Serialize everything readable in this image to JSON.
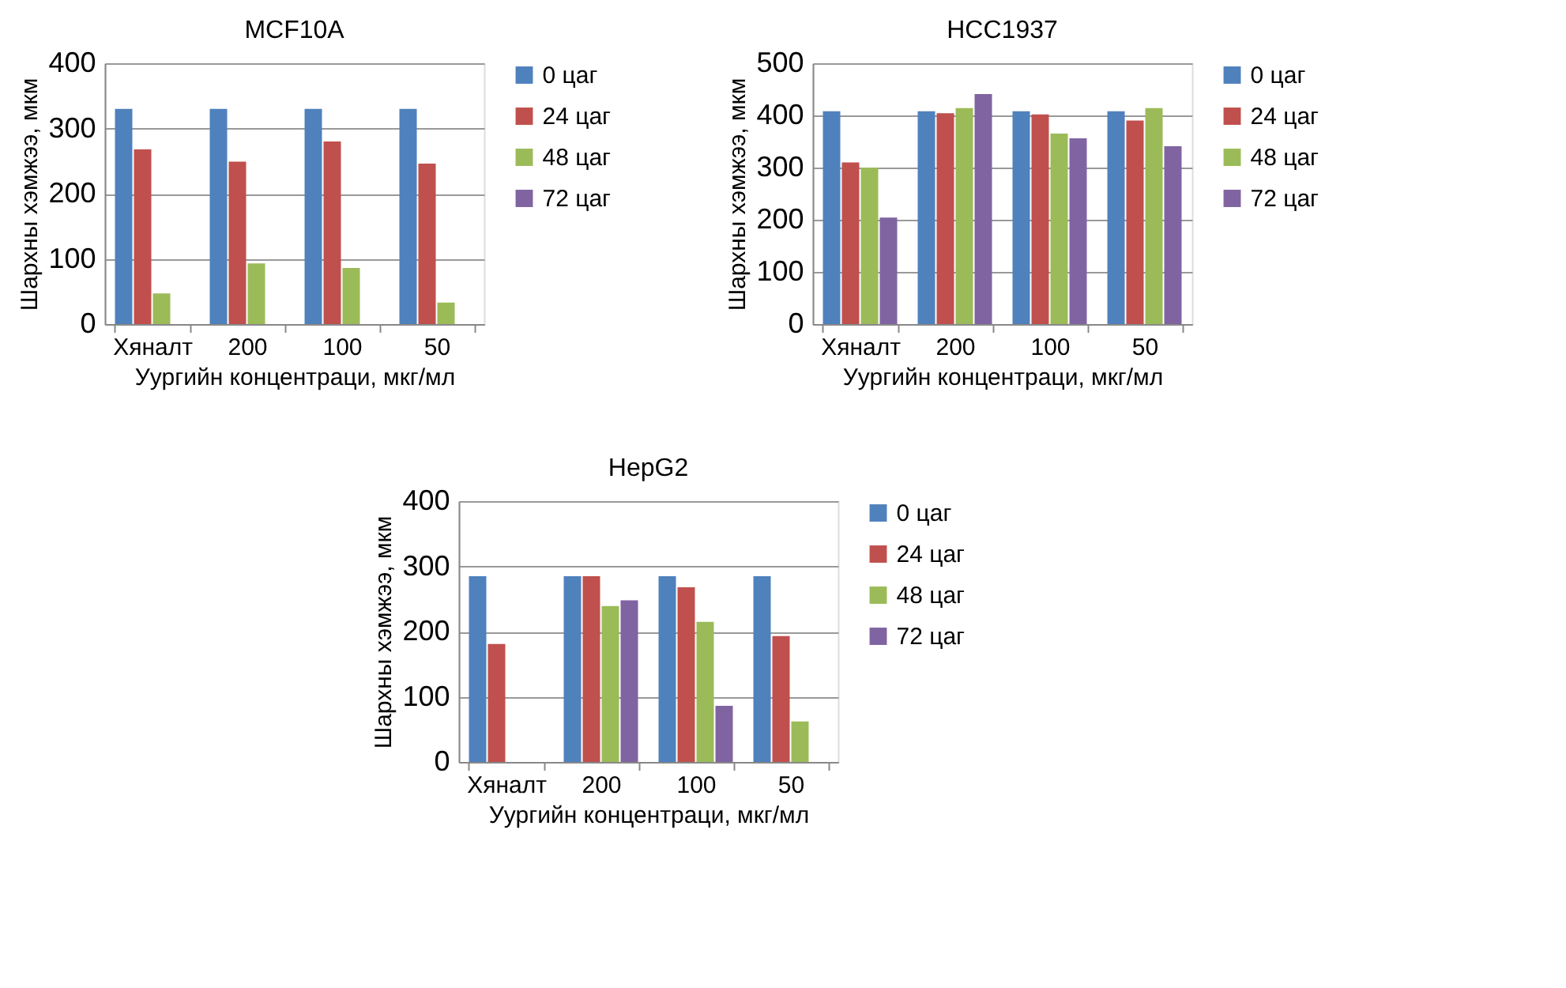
{
  "chart_data": [
    {
      "type": "bar",
      "title": "MCF10A",
      "xlabel": "Уургийн концентраци, мкг/мл",
      "ylabel": "Шархны хэмжээ, мкм",
      "categories": [
        "Хяналт",
        "200",
        "100",
        "50"
      ],
      "ylim": [
        0,
        400
      ],
      "yticks": [
        0,
        100,
        200,
        300,
        400
      ],
      "grid": "y",
      "legend": "right",
      "series": [
        {
          "name": "0 цаг",
          "color": "#4f81bd",
          "values": [
            330,
            330,
            330,
            330
          ]
        },
        {
          "name": "24 цаг",
          "color": "#c0504d",
          "values": [
            268,
            249,
            280,
            246
          ]
        },
        {
          "name": "48 цаг",
          "color": "#9bbb59",
          "values": [
            47,
            93,
            86,
            33
          ]
        },
        {
          "name": "72 цаг",
          "color": "#8064a2",
          "values": [
            null,
            null,
            null,
            null
          ]
        }
      ]
    },
    {
      "type": "bar",
      "title": "HCC1937",
      "xlabel": "Уургийн концентраци, мкг/мл",
      "ylabel": "Шархны хэмжээ, мкм",
      "categories": [
        "Хяналт",
        "200",
        "100",
        "50"
      ],
      "ylim": [
        0,
        500
      ],
      "yticks": [
        0,
        100,
        200,
        300,
        400,
        500
      ],
      "grid": "y",
      "legend": "right",
      "series": [
        {
          "name": "0 цаг",
          "color": "#4f81bd",
          "values": [
            408,
            408,
            408,
            408
          ]
        },
        {
          "name": "24 цаг",
          "color": "#c0504d",
          "values": [
            310,
            404,
            402,
            390
          ]
        },
        {
          "name": "48 цаг",
          "color": "#9bbb59",
          "values": [
            300,
            414,
            365,
            414
          ]
        },
        {
          "name": "72 цаг",
          "color": "#8064a2",
          "values": [
            204,
            441,
            356,
            341
          ]
        }
      ]
    },
    {
      "type": "bar",
      "title": "HepG2",
      "xlabel": "Уургийн концентраци, мкг/мл",
      "ylabel": "Шархны хэмжээ, мкм",
      "categories": [
        "Хяналт",
        "200",
        "100",
        "50"
      ],
      "ylim": [
        0,
        400
      ],
      "yticks": [
        0,
        100,
        200,
        300,
        400
      ],
      "grid": "y",
      "legend": "right",
      "series": [
        {
          "name": "0 цаг",
          "color": "#4f81bd",
          "values": [
            285,
            285,
            285,
            285
          ]
        },
        {
          "name": "24 цаг",
          "color": "#c0504d",
          "values": [
            181,
            285,
            268,
            193
          ]
        },
        {
          "name": "48 цаг",
          "color": "#9bbb59",
          "values": [
            null,
            239,
            215,
            62
          ]
        },
        {
          "name": "72 цаг",
          "color": "#8064a2",
          "values": [
            null,
            248,
            86,
            null
          ]
        }
      ]
    }
  ]
}
